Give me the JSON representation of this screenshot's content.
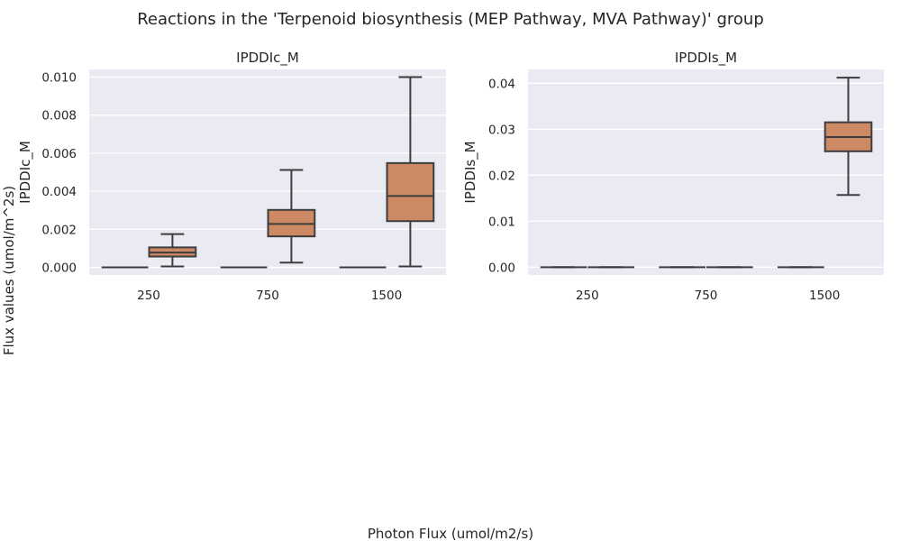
{
  "figure": {
    "title": "Reactions in the 'Terpenoid biosynthesis (MEP Pathway, MVA Pathway)' group",
    "xlabel": "Photon Flux (umol/m2/s)",
    "ylabel": "Flux values (umol/m^2s)"
  },
  "colors": {
    "background": "#eaeaf2",
    "grid": "#ffffff",
    "box_fill": "#cc8963",
    "line": "#3d3d3d"
  },
  "chart_data": [
    {
      "type": "box",
      "title": "IPDDIc_M",
      "ylabel": "IPDDIc_M",
      "categories": [
        "250",
        "750",
        "1500"
      ],
      "ylim": [
        -0.0004,
        0.0104
      ],
      "yticks": [
        0.0,
        0.002,
        0.004,
        0.006,
        0.008,
        0.01
      ],
      "ytick_labels": [
        "0.000",
        "0.002",
        "0.004",
        "0.006",
        "0.008",
        "0.010"
      ],
      "grid": true,
      "series": [
        {
          "boxes": [
            {
              "category": "250",
              "whislo": 0,
              "q1": 0,
              "med": 0,
              "q3": 0,
              "whishi": 0
            },
            {
              "category": "750",
              "whislo": 0,
              "q1": 0,
              "med": 0,
              "q3": 0,
              "whishi": 0
            },
            {
              "category": "1500",
              "whislo": 0,
              "q1": 0,
              "med": 0,
              "q3": 0,
              "whishi": 0
            }
          ]
        },
        {
          "boxes": [
            {
              "category": "250",
              "whislo": 5e-05,
              "q1": 0.00057,
              "med": 0.00078,
              "q3": 0.00105,
              "whishi": 0.00175
            },
            {
              "category": "750",
              "whislo": 0.00025,
              "q1": 0.00163,
              "med": 0.00228,
              "q3": 0.00302,
              "whishi": 0.00512
            },
            {
              "category": "1500",
              "whislo": 5e-05,
              "q1": 0.00243,
              "med": 0.00375,
              "q3": 0.00548,
              "whishi": 0.01
            }
          ]
        }
      ]
    },
    {
      "type": "box",
      "title": "IPDDIs_M",
      "ylabel": "IPDDIs_M",
      "categories": [
        "250",
        "750",
        "1500"
      ],
      "ylim": [
        -0.0017,
        0.043
      ],
      "yticks": [
        0.0,
        0.01,
        0.02,
        0.03,
        0.04
      ],
      "ytick_labels": [
        "0.00",
        "0.01",
        "0.02",
        "0.03",
        "0.04"
      ],
      "grid": true,
      "series": [
        {
          "boxes": [
            {
              "category": "250",
              "whislo": 0,
              "q1": 0,
              "med": 0,
              "q3": 0,
              "whishi": 0
            },
            {
              "category": "750",
              "whislo": 0,
              "q1": 0,
              "med": 0,
              "q3": 0,
              "whishi": 0
            },
            {
              "category": "1500",
              "whislo": 0,
              "q1": 0,
              "med": 0,
              "q3": 0,
              "whishi": 0
            }
          ]
        },
        {
          "boxes": [
            {
              "category": "250",
              "whislo": 0,
              "q1": 0,
              "med": 0,
              "q3": 0,
              "whishi": 0
            },
            {
              "category": "750",
              "whislo": 0,
              "q1": 0,
              "med": 0,
              "q3": 0,
              "whishi": 0
            },
            {
              "category": "1500",
              "whislo": 0.0157,
              "q1": 0.0252,
              "med": 0.0283,
              "q3": 0.0315,
              "whishi": 0.0412
            }
          ]
        }
      ]
    }
  ]
}
